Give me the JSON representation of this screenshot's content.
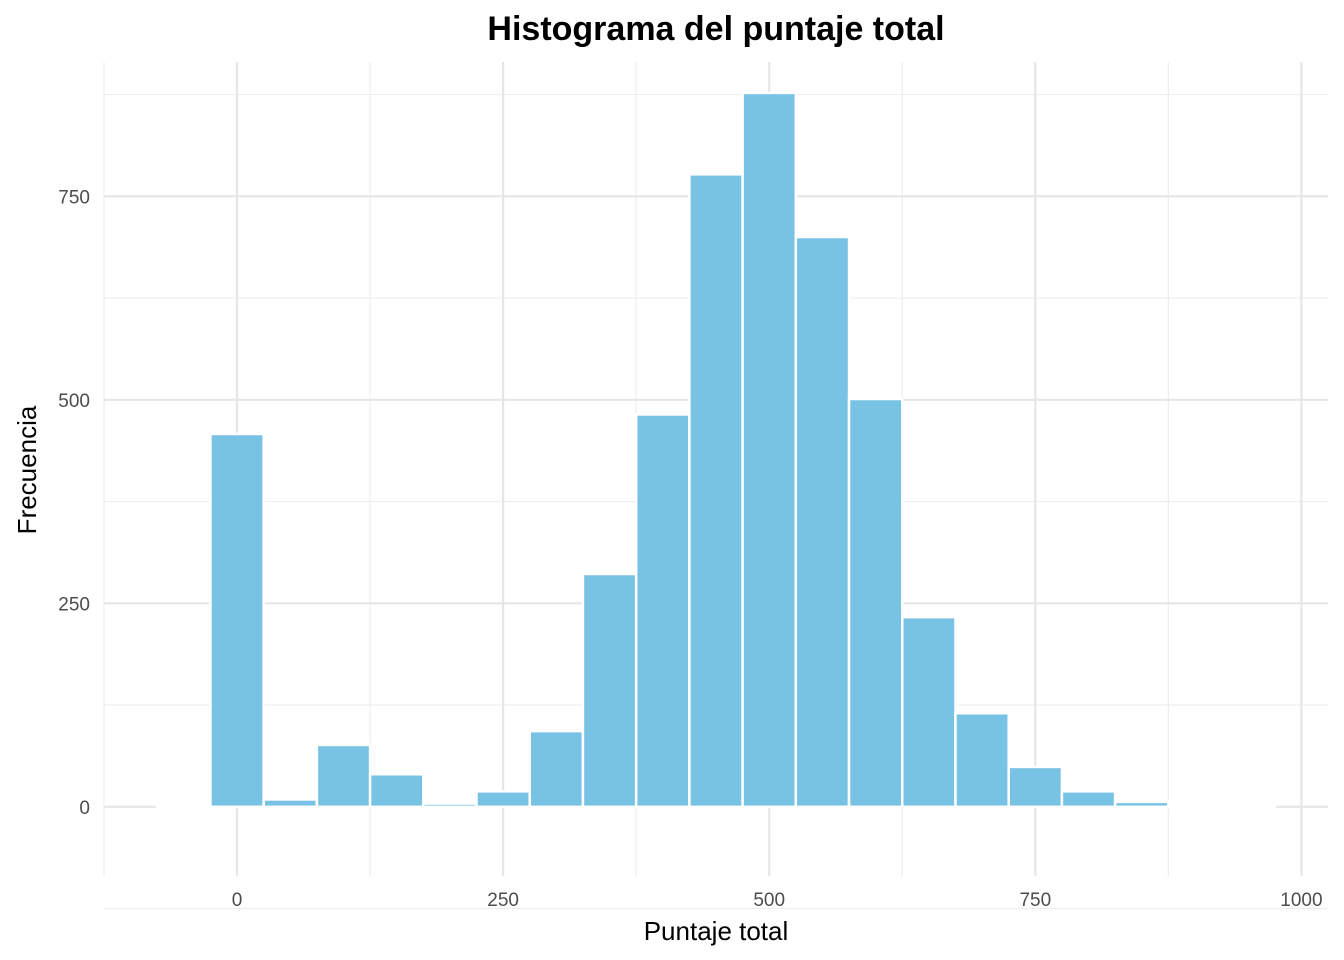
{
  "chart_data": {
    "type": "bar",
    "title": "Histograma del puntaje total",
    "xlabel": "Puntaje total",
    "ylabel": "Frecuencia",
    "bar_color": "#78c2e4",
    "bin_width": 50,
    "bin_centers": [
      -50,
      0,
      50,
      100,
      150,
      200,
      250,
      300,
      350,
      400,
      450,
      500,
      550,
      600,
      650,
      700,
      750,
      800,
      850,
      900,
      950
    ],
    "values": [
      0,
      458,
      9,
      76,
      40,
      4,
      19,
      93,
      286,
      482,
      777,
      877,
      700,
      501,
      233,
      115,
      49,
      19,
      6,
      0,
      0
    ],
    "xlim": [
      -125,
      1025
    ],
    "ylim": [
      -85,
      915
    ],
    "x_ticks": [
      0,
      250,
      500,
      750,
      1000
    ],
    "x_tick_labels": [
      "0",
      "250",
      "500",
      "750",
      "1000"
    ],
    "y_ticks": [
      0,
      250,
      500,
      750
    ],
    "y_tick_labels": [
      "0",
      "250",
      "500",
      "750"
    ],
    "grid": true,
    "legend": "none"
  }
}
